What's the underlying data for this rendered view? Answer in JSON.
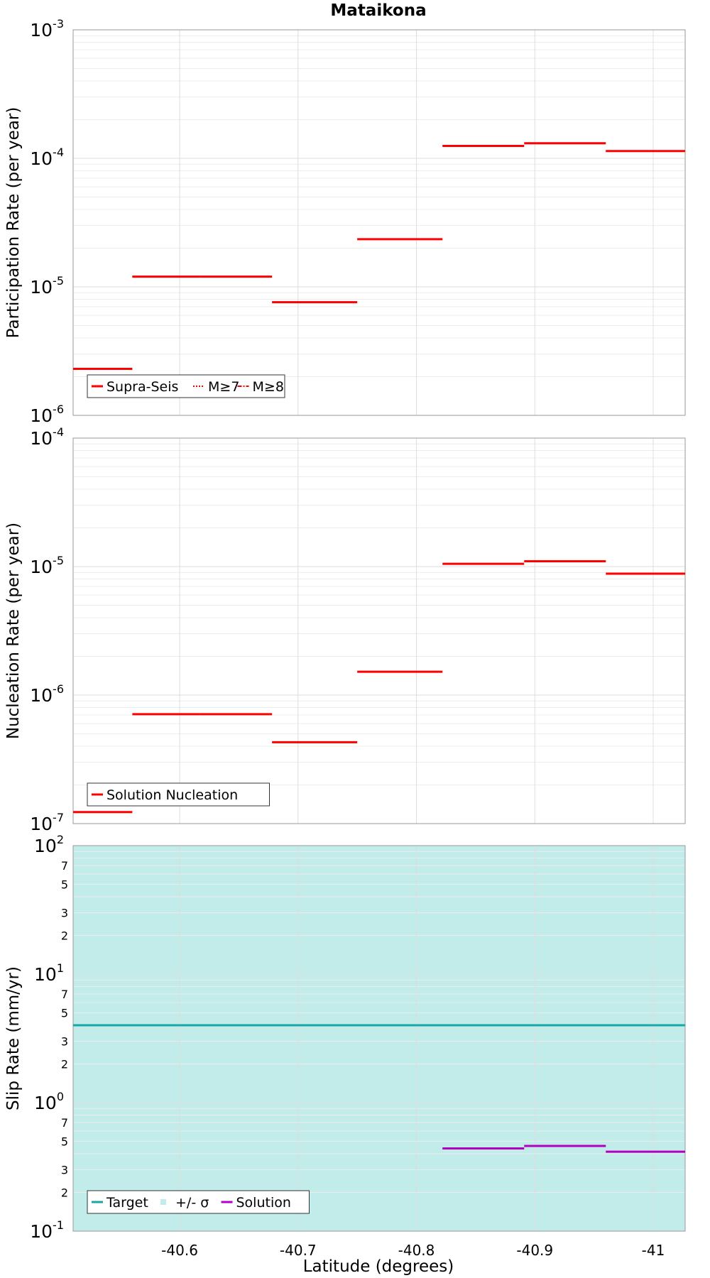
{
  "chart_data": {
    "title": "Mataikona",
    "xlabel": "Latitude (degrees)",
    "x_ticks": [
      -40.6,
      -40.7,
      -40.8,
      -40.9,
      -41
    ],
    "x_tick_labels": [
      "-40.6",
      "-40.7",
      "-40.8",
      "-40.9",
      "-41"
    ],
    "xlim": [
      -40.51,
      -41.027
    ],
    "x_reversed": true,
    "grid": true,
    "panels": [
      {
        "id": "participation",
        "type": "line",
        "ylabel": "Participation Rate (per year)",
        "yscale": "log",
        "ylim": [
          1e-06,
          0.001
        ],
        "y_ticks": [
          {
            "base": "10",
            "exp": "-6"
          },
          {
            "base": "10",
            "exp": "-5"
          },
          {
            "base": "10",
            "exp": "-4"
          },
          {
            "base": "10",
            "exp": "-3"
          }
        ],
        "legend_position": "bottom-left",
        "legend": [
          {
            "label": "Supra-Seis",
            "color": "#ff0000",
            "style": "solid"
          },
          {
            "label": "M≥7",
            "color": "#ff0000",
            "style": "dotted"
          },
          {
            "label": "M≥8",
            "color": "#ff0000",
            "style": "dashdot"
          }
        ],
        "series": [
          {
            "name": "Supra-Seis",
            "color": "#ff0000",
            "segments": [
              {
                "x0": -40.51,
                "x1": -40.56,
                "y": 2.3e-06
              },
              {
                "x0": -40.56,
                "x1": -40.617,
                "y": 1.2e-05
              },
              {
                "x0": -40.617,
                "x1": -40.678,
                "y": 1.2e-05
              },
              {
                "x0": -40.678,
                "x1": -40.75,
                "y": 7.6e-06
              },
              {
                "x0": -40.75,
                "x1": -40.822,
                "y": 2.35e-05
              },
              {
                "x0": -40.822,
                "x1": -40.891,
                "y": 0.000125
              },
              {
                "x0": -40.891,
                "x1": -40.96,
                "y": 0.000131
              },
              {
                "x0": -40.96,
                "x1": -41.027,
                "y": 0.000114
              }
            ]
          },
          {
            "name": "M≥7",
            "color": "#ff0000",
            "segments": [
              {
                "x0": -40.56,
                "x1": -40.617,
                "y": 1.2e-05
              },
              {
                "x0": -40.617,
                "x1": -40.678,
                "y": 1.2e-05
              },
              {
                "x0": -40.96,
                "x1": -41.027,
                "y": 0.000114
              }
            ]
          }
        ]
      },
      {
        "id": "nucleation",
        "type": "line",
        "ylabel": "Nucleation Rate (per year)",
        "yscale": "log",
        "ylim": [
          1e-07,
          0.0001
        ],
        "y_ticks": [
          {
            "base": "10",
            "exp": "-7"
          },
          {
            "base": "10",
            "exp": "-6"
          },
          {
            "base": "10",
            "exp": "-5"
          },
          {
            "base": "10",
            "exp": "-4"
          }
        ],
        "legend_position": "bottom-left",
        "legend": [
          {
            "label": "Solution Nucleation",
            "color": "#ff0000",
            "style": "solid"
          }
        ],
        "series": [
          {
            "name": "Solution Nucleation",
            "color": "#ff0000",
            "segments": [
              {
                "x0": -40.51,
                "x1": -40.56,
                "y": 1.23e-07
              },
              {
                "x0": -40.56,
                "x1": -40.617,
                "y": 7.1e-07
              },
              {
                "x0": -40.617,
                "x1": -40.678,
                "y": 7.1e-07
              },
              {
                "x0": -40.678,
                "x1": -40.75,
                "y": 4.3e-07
              },
              {
                "x0": -40.75,
                "x1": -40.822,
                "y": 1.52e-06
              },
              {
                "x0": -40.822,
                "x1": -40.891,
                "y": 1.05e-05
              },
              {
                "x0": -40.891,
                "x1": -40.96,
                "y": 1.1e-05
              },
              {
                "x0": -40.96,
                "x1": -41.027,
                "y": 8.8e-06
              }
            ]
          }
        ]
      },
      {
        "id": "slip",
        "type": "line",
        "ylabel": "Slip Rate (mm/yr)",
        "yscale": "log",
        "ylim": [
          0.1,
          100
        ],
        "y_ticks": [
          {
            "base": "10",
            "exp": "-1"
          },
          {
            "base": "10",
            "exp": "0"
          },
          {
            "base": "10",
            "exp": "1"
          },
          {
            "base": "10",
            "exp": "2"
          }
        ],
        "minor_tick_labels": [
          "2",
          "3",
          "5",
          "7"
        ],
        "legend_position": "bottom-left",
        "legend": [
          {
            "label": "Target",
            "color": "#1aa6a6",
            "style": "solid"
          },
          {
            "label": "+/- σ",
            "color": "#c2ecea",
            "style": "box"
          },
          {
            "label": "Solution",
            "color": "#b000c0",
            "style": "solid"
          }
        ],
        "band": {
          "name": "+/- σ",
          "color": "#c2ecea",
          "y0": 0.1,
          "y1": 100
        },
        "series": [
          {
            "name": "Target",
            "color": "#1aa6a6",
            "segments": [
              {
                "x0": -40.51,
                "x1": -41.027,
                "y": 4.0
              }
            ]
          },
          {
            "name": "Solution",
            "color": "#b000c0",
            "segments": [
              {
                "x0": -40.822,
                "x1": -40.891,
                "y": 0.44
              },
              {
                "x0": -40.891,
                "x1": -40.96,
                "y": 0.46
              },
              {
                "x0": -40.96,
                "x1": -41.027,
                "y": 0.415
              }
            ]
          }
        ]
      }
    ]
  }
}
